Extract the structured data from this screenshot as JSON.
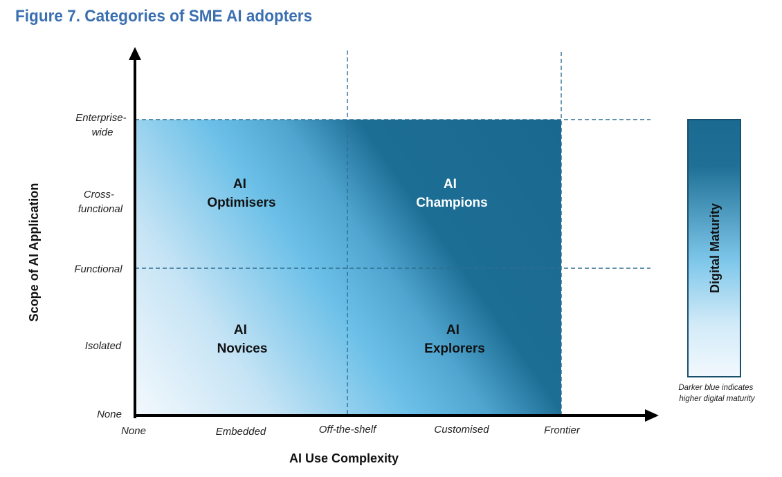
{
  "title": "Figure 7. Categories of SME AI adopters",
  "y_axis": {
    "title": "Scope of AI Application",
    "ticks": [
      {
        "lines": [
          "Enterprise-",
          "wide"
        ]
      },
      {
        "lines": [
          "Cross-",
          "functional"
        ]
      },
      {
        "lines": [
          "Functional"
        ]
      },
      {
        "lines": [
          "Isolated"
        ]
      },
      {
        "lines": [
          "None"
        ]
      }
    ]
  },
  "x_axis": {
    "title": "AI Use Complexity",
    "ticks": [
      "None",
      "Embedded",
      "Off-the-shelf",
      "Customised",
      "Frontier"
    ]
  },
  "quadrants": [
    {
      "id": "optimisers",
      "line1": "AI",
      "line2": "Optimisers",
      "color": "#111111"
    },
    {
      "id": "champions",
      "line1": "AI",
      "line2": "Champions",
      "color": "#ffffff"
    },
    {
      "id": "novices",
      "line1": "AI",
      "line2": "Novices",
      "color": "#111111"
    },
    {
      "id": "explorers",
      "line1": "AI",
      "line2": "Explorers",
      "color": "#111111"
    }
  ],
  "legend": {
    "title": "Digital Maturity",
    "note_line1": "Darker blue indicates",
    "note_line2": "higher digital maturity"
  },
  "colors": {
    "title": "#3a6fb0",
    "dark_blue": "#1a6a91",
    "mid_blue": "#6cc0e8",
    "light_blue": "#f2f8fd",
    "dash": "#2e6d92",
    "axis": "#000000"
  }
}
